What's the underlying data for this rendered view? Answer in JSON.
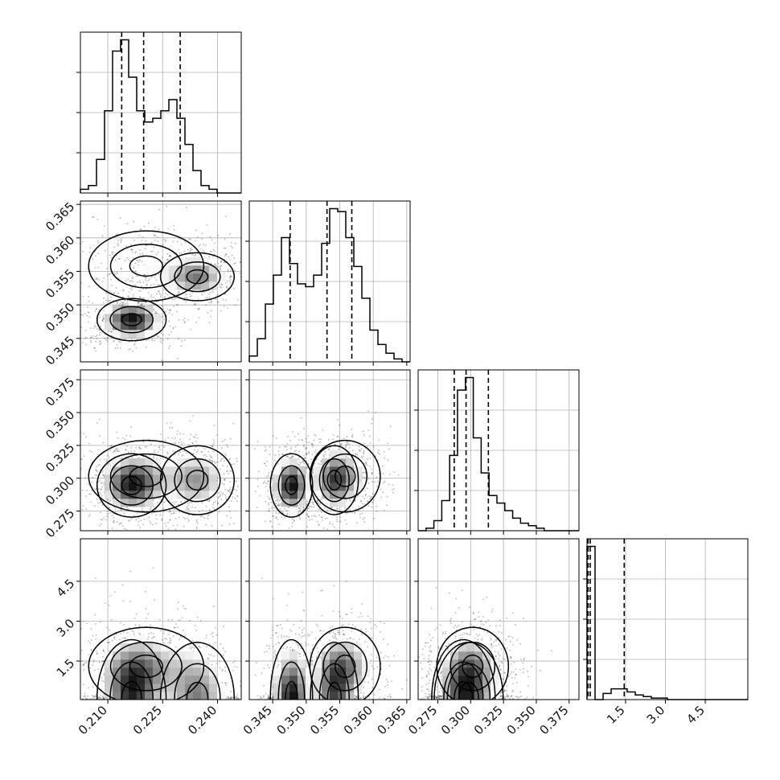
{
  "chart_data": {
    "type": "corner",
    "title": "",
    "parameters": [
      {
        "range": [
          0.2025,
          0.2465
        ],
        "ticks": [
          0.21,
          0.225,
          0.24
        ],
        "tick_labels": [
          "0.210",
          "0.225",
          "0.240"
        ],
        "quantiles": [
          0.2138,
          0.2198,
          0.2298
        ]
      },
      {
        "range": [
          0.3415,
          0.3655
        ],
        "ticks": [
          0.345,
          0.35,
          0.355,
          0.36,
          0.365
        ],
        "tick_labels": [
          "0.345",
          "0.350",
          "0.355",
          "0.360",
          "0.365"
        ],
        "quantiles": [
          0.3476,
          0.3531,
          0.3568
        ]
      },
      {
        "range": [
          0.26,
          0.3825
        ],
        "ticks": [
          0.275,
          0.3,
          0.325,
          0.35,
          0.375
        ],
        "tick_labels": [
          "0.275",
          "0.300",
          "0.325",
          "0.350",
          "0.375"
        ],
        "quantiles": [
          0.2875,
          0.2965,
          0.3135
        ]
      },
      {
        "range": [
          0.05,
          6.1
        ],
        "ticks": [
          1.5,
          3.0,
          4.5
        ],
        "tick_labels": [
          "1.5",
          "3.0",
          "4.5"
        ],
        "quantiles": [
          0.09,
          0.17,
          1.45
        ]
      }
    ],
    "histograms": [
      {
        "edges": [
          0.2025,
          0.2047,
          0.2069,
          0.2091,
          0.2113,
          0.2135,
          0.2157,
          0.2179,
          0.2201,
          0.2223,
          0.2245,
          0.2267,
          0.2289,
          0.2311,
          0.2333,
          0.2355,
          0.2377,
          0.2399,
          0.2421,
          0.2443,
          0.2465
        ],
        "counts": [
          1,
          2,
          9,
          22,
          38,
          41,
          31,
          22,
          19,
          20,
          22,
          25,
          20,
          13,
          6,
          2,
          1,
          0,
          0,
          0
        ]
      },
      {
        "edges": [
          0.3415,
          0.3427,
          0.3439,
          0.3451,
          0.3463,
          0.3475,
          0.3487,
          0.3499,
          0.3511,
          0.3523,
          0.3535,
          0.3547,
          0.3559,
          0.3571,
          0.3583,
          0.3595,
          0.3607,
          0.3619,
          0.3631,
          0.3643,
          0.3655
        ],
        "counts": [
          2,
          8,
          20,
          30,
          43,
          34,
          27,
          26,
          30,
          41,
          53,
          52,
          43,
          33,
          22,
          11,
          6,
          3,
          1,
          0
        ]
      },
      {
        "edges": [
          0.26,
          0.266,
          0.272,
          0.278,
          0.284,
          0.29,
          0.296,
          0.302,
          0.308,
          0.314,
          0.32,
          0.326,
          0.332,
          0.338,
          0.344,
          0.35,
          0.356,
          0.362,
          0.368,
          0.374,
          0.3825
        ],
        "counts": [
          0,
          1,
          4,
          12,
          30,
          56,
          61,
          37,
          23,
          14,
          11,
          8,
          5,
          3,
          2,
          1,
          0,
          0,
          0,
          0
        ]
      },
      {
        "edges": [
          0.05,
          0.352,
          0.655,
          0.958,
          1.26,
          1.562,
          1.865,
          2.168,
          2.47,
          2.772,
          3.075,
          3.378,
          3.68,
          3.982,
          4.285,
          4.588,
          4.89,
          5.192,
          5.495,
          5.797,
          6.1
        ],
        "counts": [
          100,
          0,
          4,
          7,
          7,
          5,
          3,
          2,
          1,
          1,
          0,
          0,
          0,
          0,
          0,
          0,
          0,
          0,
          0,
          0
        ]
      }
    ],
    "components": [
      {
        "weight": 0.42,
        "mean": [
          0.2165,
          0.3478,
          0.2945,
          0.1
        ],
        "sd": [
          0.0045,
          0.0015,
          0.0115,
          1.05
        ]
      },
      {
        "weight": 0.32,
        "mean": [
          0.2345,
          0.3542,
          0.2985,
          0.1
        ],
        "sd": [
          0.0048,
          0.0017,
          0.0125,
          1.0
        ]
      },
      {
        "weight": 0.26,
        "mean": [
          0.2205,
          0.3558,
          0.3015,
          1.3
        ],
        "sd": [
          0.0075,
          0.0025,
          0.013,
          0.7
        ]
      }
    ]
  }
}
